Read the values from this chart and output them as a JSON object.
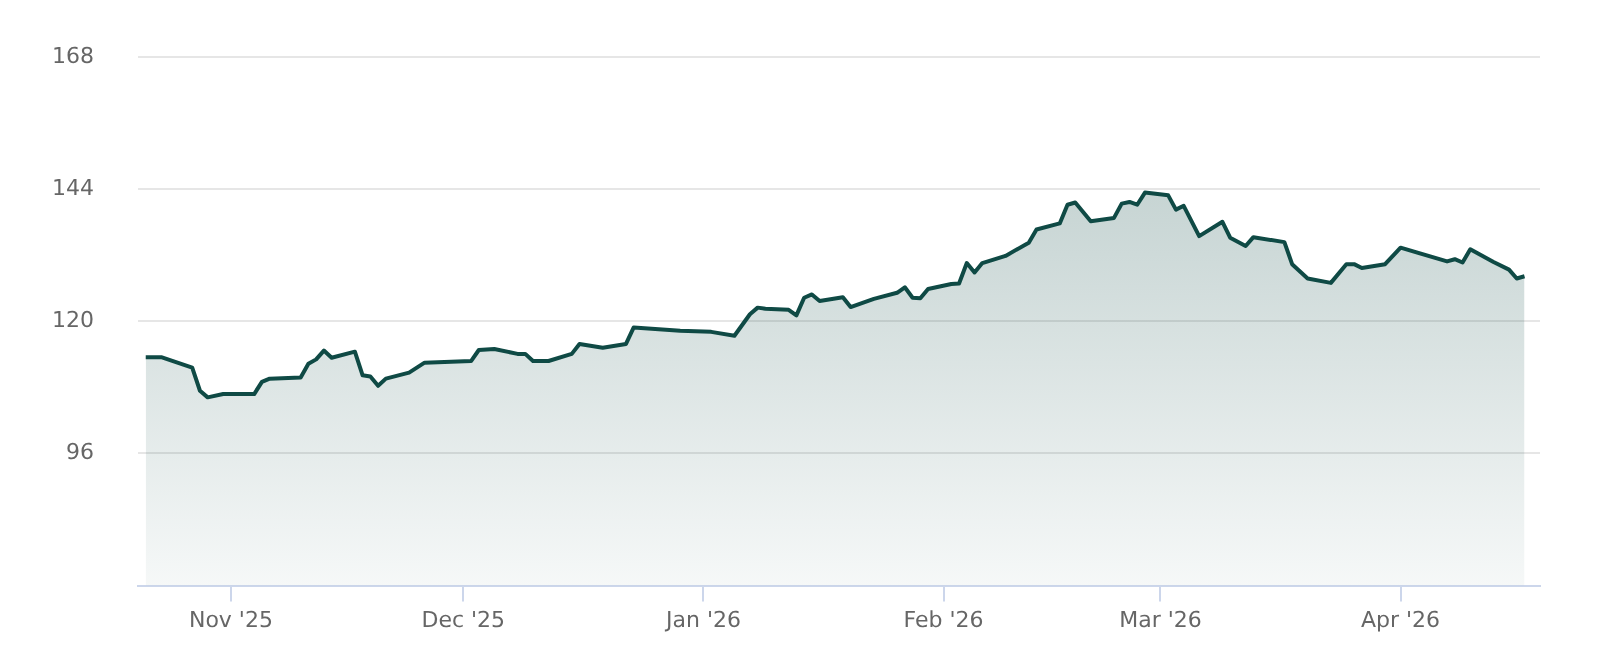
{
  "chart_data": {
    "type": "area",
    "x": [
      "2025-10-21",
      "2025-10-23",
      "2025-10-27",
      "2025-10-28",
      "2025-10-29",
      "2025-10-31",
      "2025-11-04",
      "2025-11-05",
      "2025-11-06",
      "2025-11-10",
      "2025-11-11",
      "2025-11-12",
      "2025-11-13",
      "2025-11-14",
      "2025-11-17",
      "2025-11-18",
      "2025-11-19",
      "2025-11-20",
      "2025-11-21",
      "2025-11-24",
      "2025-11-26",
      "2025-12-02",
      "2025-12-03",
      "2025-12-05",
      "2025-12-08",
      "2025-12-09",
      "2025-12-10",
      "2025-12-12",
      "2025-12-15",
      "2025-12-16",
      "2025-12-19",
      "2025-12-22",
      "2025-12-23",
      "2025-12-29",
      "2026-01-02",
      "2026-01-05",
      "2026-01-07",
      "2026-01-08",
      "2026-01-09",
      "2026-01-12",
      "2026-01-13",
      "2026-01-14",
      "2026-01-15",
      "2026-01-16",
      "2026-01-19",
      "2026-01-20",
      "2026-01-23",
      "2026-01-26",
      "2026-01-27",
      "2026-01-28",
      "2026-01-29",
      "2026-01-30",
      "2026-02-02",
      "2026-02-03",
      "2026-02-04",
      "2026-02-05",
      "2026-02-06",
      "2026-02-09",
      "2026-02-12",
      "2026-02-13",
      "2026-02-16",
      "2026-02-17",
      "2026-02-18",
      "2026-02-20",
      "2026-02-23",
      "2026-02-24",
      "2026-02-25",
      "2026-02-26",
      "2026-02-27",
      "2026-03-02",
      "2026-03-03",
      "2026-03-04",
      "2026-03-06",
      "2026-03-09",
      "2026-03-10",
      "2026-03-12",
      "2026-03-13",
      "2026-03-17",
      "2026-03-18",
      "2026-03-20",
      "2026-03-23",
      "2026-03-25",
      "2026-03-26",
      "2026-03-27",
      "2026-03-30",
      "2026-04-01",
      "2026-04-07",
      "2026-04-08",
      "2026-04-09",
      "2026-04-10",
      "2026-04-13",
      "2026-04-15",
      "2026-04-16",
      "2026-04-17"
    ],
    "series": [
      {
        "color": "#0f4a45",
        "values": [
          113.5,
          113.5,
          111.6,
          107.4,
          106.2,
          106.8,
          106.8,
          109.0,
          109.6,
          109.8,
          112.3,
          113.1,
          114.7,
          113.4,
          114.5,
          110.2,
          110.0,
          108.3,
          109.6,
          110.7,
          112.5,
          112.8,
          114.8,
          115.0,
          114.1,
          114.1,
          112.8,
          112.8,
          114.1,
          115.9,
          115.2,
          115.9,
          118.9,
          118.3,
          118.1,
          117.4,
          121.3,
          122.5,
          122.3,
          122.1,
          121.1,
          124.3,
          124.9,
          123.7,
          124.4,
          122.6,
          124.1,
          125.2,
          126.2,
          124.3,
          124.2,
          125.9,
          126.8,
          126.9,
          130.6,
          128.9,
          130.6,
          131.9,
          134.3,
          136.7,
          137.8,
          141.2,
          141.6,
          138.2,
          138.8,
          141.4,
          141.7,
          141.2,
          143.4,
          142.9,
          140.3,
          141.0,
          135.5,
          138.1,
          135.2,
          133.7,
          135.3,
          134.4,
          130.4,
          127.8,
          127.0,
          130.4,
          130.4,
          129.7,
          130.4,
          133.4,
          130.9,
          131.3,
          130.7,
          133.1,
          130.8,
          129.4,
          127.8,
          128.2
        ]
      }
    ],
    "xlim": [
      "2025-10-20",
      "2026-04-19"
    ],
    "xticks": [
      {
        "value": "2025-11-01",
        "label": "Nov '25"
      },
      {
        "value": "2025-12-01",
        "label": "Dec '25"
      },
      {
        "value": "2026-01-01",
        "label": "Jan '26"
      },
      {
        "value": "2026-02-01",
        "label": "Feb '26"
      },
      {
        "value": "2026-03-01",
        "label": "Mar '26"
      },
      {
        "value": "2026-04-01",
        "label": "Apr '26"
      }
    ],
    "ylim": [
      72,
      168
    ],
    "yticks": [
      96,
      120,
      144,
      168
    ],
    "grid": "y",
    "legend": false,
    "marker": "none",
    "line_style": "solid"
  }
}
